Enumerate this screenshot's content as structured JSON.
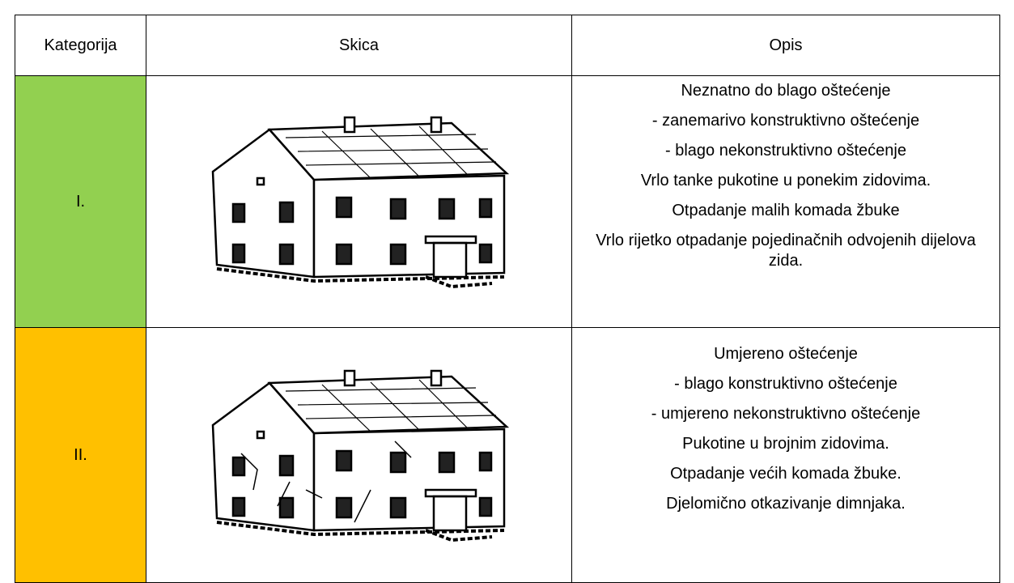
{
  "table": {
    "header": [
      "Kategorija",
      "Skica",
      "Opis"
    ],
    "rows": [
      {
        "category": "I.",
        "description": [
          "Neznatno do blago oštećenje",
          "- zanemarivo konstruktivno oštećenje",
          "- blago nekonstruktivno oštećenje",
          "Vrlo tanke pukotine u ponekim zidovima.",
          "Otpadanje malih komada žbuke",
          "Vrlo rijetko otpadanje pojedinačnih odvojenih dijelova zida."
        ]
      },
      {
        "category": "II.",
        "description": [
          "Umjereno oštećenje",
          "- blago konstruktivno oštećenje",
          "- umjereno nekonstruktivno oštećenje",
          "Pukotine u brojnim zidovima.",
          "Otpadanje većih komada žbuke.",
          "Djelomično otkazivanje dimnjaka."
        ]
      }
    ]
  }
}
